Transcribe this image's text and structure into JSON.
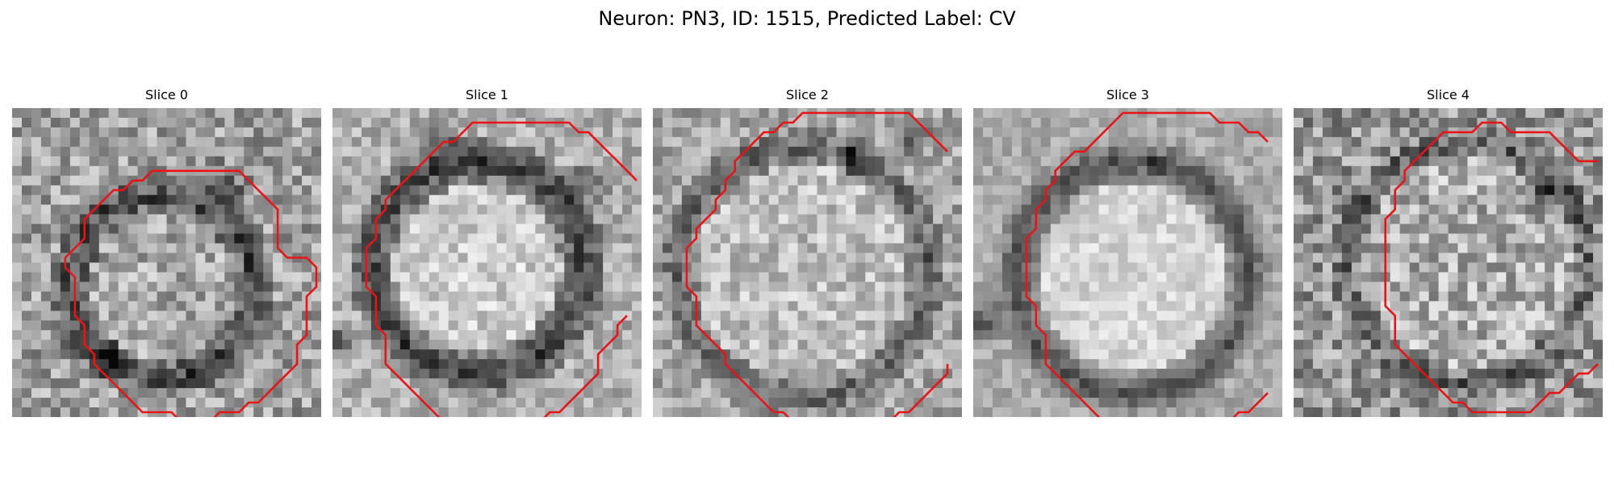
{
  "figure": {
    "title": "Neuron: PN3, ID: 1515, Predicted Label: CV"
  },
  "panels": [
    {
      "title": "Slice 0",
      "contour_color": "#e81416",
      "contour": [
        [
          14,
          6
        ],
        [
          23,
          6
        ],
        [
          27,
          10
        ],
        [
          27,
          14
        ],
        [
          28,
          15
        ],
        [
          30,
          15
        ],
        [
          31,
          16
        ],
        [
          31,
          18
        ],
        [
          30,
          19
        ],
        [
          30,
          23
        ],
        [
          29,
          24
        ],
        [
          29,
          26
        ],
        [
          28,
          27
        ],
        [
          27,
          28
        ],
        [
          25,
          30
        ],
        [
          24,
          30
        ],
        [
          23,
          31
        ],
        [
          21,
          31
        ],
        [
          20,
          32
        ],
        [
          17,
          32
        ],
        [
          16,
          31
        ],
        [
          13,
          31
        ],
        [
          12,
          30
        ],
        [
          10,
          28
        ],
        [
          9,
          27
        ],
        [
          8,
          26
        ],
        [
          8,
          25
        ],
        [
          7,
          24
        ],
        [
          7,
          22
        ],
        [
          6,
          21
        ],
        [
          6,
          17
        ],
        [
          5,
          16
        ],
        [
          5,
          15
        ],
        [
          6,
          14
        ],
        [
          7,
          13
        ],
        [
          7,
          11
        ],
        [
          8,
          10
        ],
        [
          9,
          9
        ],
        [
          10,
          8
        ],
        [
          11,
          8
        ],
        [
          12,
          7
        ],
        [
          13,
          7
        ]
      ]
    },
    {
      "title": "Slice 1",
      "contour_color": "#e81416",
      "contour_segments": [
        [
          [
            31,
            7
          ],
          [
            29,
            5
          ],
          [
            28,
            4
          ],
          [
            27,
            3
          ],
          [
            26,
            2
          ],
          [
            25,
            2
          ],
          [
            24,
            1
          ],
          [
            14,
            1
          ],
          [
            13,
            2
          ],
          [
            12,
            3
          ],
          [
            11,
            3
          ],
          [
            10,
            4
          ],
          [
            9,
            5
          ],
          [
            8,
            6
          ],
          [
            7,
            7
          ],
          [
            6,
            8
          ],
          [
            5,
            9
          ],
          [
            5,
            10
          ],
          [
            4,
            11
          ],
          [
            4,
            13
          ],
          [
            3,
            14
          ],
          [
            3,
            18
          ],
          [
            4,
            19
          ],
          [
            4,
            22
          ],
          [
            5,
            23
          ],
          [
            5,
            26
          ],
          [
            6,
            27
          ],
          [
            7,
            28
          ],
          [
            8,
            29
          ],
          [
            9,
            30
          ],
          [
            10,
            31
          ],
          [
            11,
            32
          ],
          [
            13,
            32
          ],
          [
            14,
            33
          ],
          [
            20,
            33
          ],
          [
            21,
            32
          ],
          [
            22,
            31
          ],
          [
            23,
            31
          ],
          [
            24,
            30
          ],
          [
            25,
            29
          ],
          [
            26,
            28
          ],
          [
            27,
            27
          ],
          [
            27,
            25
          ],
          [
            28,
            24
          ],
          [
            29,
            23
          ],
          [
            29,
            22
          ],
          [
            30,
            21
          ]
        ]
      ]
    },
    {
      "title": "Slice 2",
      "contour_color": "#e81416",
      "contour_segments": [
        [
          [
            30,
            4
          ],
          [
            28,
            2
          ],
          [
            27,
            1
          ],
          [
            26,
            0
          ],
          [
            15,
            0
          ],
          [
            14,
            1
          ],
          [
            13,
            1
          ],
          [
            12,
            2
          ],
          [
            11,
            2
          ],
          [
            10,
            3
          ],
          [
            9,
            4
          ],
          [
            8,
            5
          ],
          [
            8,
            6
          ],
          [
            7,
            7
          ],
          [
            7,
            8
          ],
          [
            6,
            9
          ],
          [
            6,
            10
          ],
          [
            5,
            11
          ],
          [
            4,
            12
          ],
          [
            4,
            13
          ],
          [
            3,
            14
          ],
          [
            3,
            18
          ],
          [
            4,
            19
          ],
          [
            4,
            22
          ],
          [
            5,
            23
          ],
          [
            6,
            24
          ],
          [
            7,
            25
          ],
          [
            7,
            26
          ],
          [
            8,
            27
          ],
          [
            9,
            28
          ],
          [
            10,
            29
          ],
          [
            11,
            30
          ],
          [
            12,
            31
          ],
          [
            13,
            31
          ],
          [
            14,
            32
          ],
          [
            15,
            32
          ]
        ],
        [
          [
            24,
            32
          ],
          [
            25,
            31
          ],
          [
            26,
            31
          ],
          [
            27,
            30
          ],
          [
            28,
            29
          ],
          [
            29,
            28
          ],
          [
            30,
            27
          ],
          [
            30,
            26
          ]
        ]
      ]
    },
    {
      "title": "Slice 3",
      "contour_color": "#e81416",
      "contour_segments": [
        [
          [
            30,
            3
          ],
          [
            29,
            2
          ],
          [
            28,
            2
          ],
          [
            27,
            1
          ],
          [
            25,
            1
          ],
          [
            24,
            0
          ],
          [
            15,
            0
          ],
          [
            14,
            1
          ],
          [
            13,
            2
          ],
          [
            12,
            3
          ],
          [
            11,
            4
          ],
          [
            10,
            4
          ],
          [
            9,
            5
          ],
          [
            8,
            6
          ],
          [
            8,
            7
          ],
          [
            7,
            8
          ],
          [
            7,
            9
          ],
          [
            6,
            10
          ],
          [
            6,
            12
          ],
          [
            5,
            13
          ],
          [
            5,
            19
          ],
          [
            6,
            20
          ],
          [
            6,
            22
          ],
          [
            7,
            23
          ],
          [
            7,
            26
          ],
          [
            8,
            27
          ],
          [
            9,
            28
          ],
          [
            10,
            29
          ],
          [
            11,
            30
          ],
          [
            12,
            31
          ],
          [
            13,
            32
          ],
          [
            16,
            32
          ],
          [
            17,
            33
          ]
        ],
        [
          [
            24,
            33
          ],
          [
            25,
            32
          ],
          [
            26,
            32
          ],
          [
            27,
            31
          ],
          [
            28,
            31
          ],
          [
            29,
            30
          ],
          [
            30,
            29
          ]
        ]
      ]
    },
    {
      "title": "Slice 4",
      "contour_color": "#e81416",
      "contour_segments": [
        [
          [
            31,
            5
          ],
          [
            29,
            5
          ],
          [
            28,
            4
          ],
          [
            27,
            3
          ],
          [
            26,
            2
          ],
          [
            22,
            2
          ],
          [
            21,
            1
          ],
          [
            19,
            1
          ],
          [
            18,
            2
          ],
          [
            15,
            2
          ],
          [
            14,
            3
          ],
          [
            13,
            4
          ],
          [
            12,
            5
          ],
          [
            11,
            6
          ],
          [
            11,
            7
          ],
          [
            10,
            8
          ],
          [
            10,
            10
          ],
          [
            9,
            11
          ],
          [
            9,
            20
          ],
          [
            10,
            21
          ],
          [
            10,
            24
          ],
          [
            11,
            25
          ],
          [
            12,
            26
          ],
          [
            13,
            27
          ],
          [
            14,
            28
          ],
          [
            15,
            29
          ],
          [
            16,
            30
          ],
          [
            17,
            30
          ],
          [
            18,
            31
          ],
          [
            24,
            31
          ],
          [
            25,
            30
          ],
          [
            26,
            29
          ],
          [
            27,
            29
          ],
          [
            28,
            28
          ],
          [
            29,
            27
          ],
          [
            30,
            27
          ],
          [
            31,
            26
          ]
        ]
      ]
    }
  ]
}
